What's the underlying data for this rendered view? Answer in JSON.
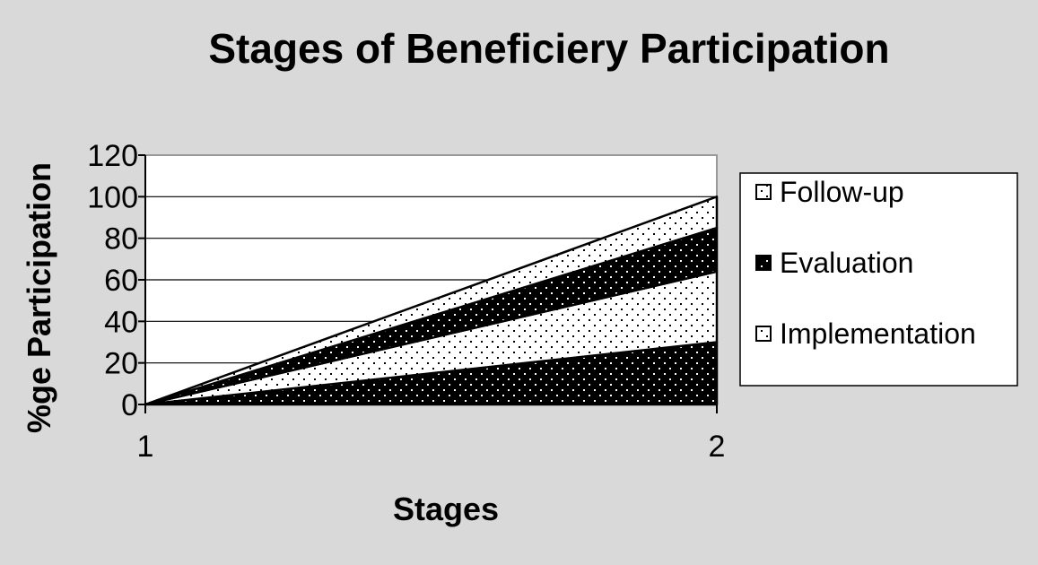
{
  "chart_data": {
    "type": "area",
    "title": "Stages of Beneficiery Participation",
    "xlabel": "Stages",
    "ylabel": "%ge Participation",
    "x": [
      1,
      2
    ],
    "xticks": [
      "1",
      "2"
    ],
    "ylim": [
      0,
      120
    ],
    "yticks": [
      0,
      20,
      40,
      60,
      80,
      100,
      120
    ],
    "stacked": true,
    "grid": true,
    "legend_position": "right",
    "series": [
      {
        "name": "Implementation",
        "values": [
          0,
          30
        ],
        "pattern": "dots-on-black",
        "cumulative_top": [
          0,
          30
        ]
      },
      {
        "name": "Implementation",
        "values": [
          0,
          34
        ],
        "pattern": "dots-on-white",
        "cumulative_top": [
          0,
          64
        ]
      },
      {
        "name": "Evaluation",
        "values": [
          0,
          21
        ],
        "pattern": "dots-on-black",
        "cumulative_top": [
          0,
          85
        ]
      },
      {
        "name": "Follow-up",
        "values": [
          0,
          15
        ],
        "pattern": "dots-on-white",
        "cumulative_top": [
          0,
          100
        ]
      }
    ],
    "legend": [
      {
        "label": "Follow-up",
        "pattern": "dots-on-white"
      },
      {
        "label": "Evaluation",
        "pattern": "dots-on-black"
      },
      {
        "label": "Implementation",
        "pattern": "dots-on-white"
      }
    ],
    "colors": {
      "background": "#d9d9d9",
      "plot": "#ffffff",
      "ink": "#000000",
      "grid": "#000000"
    }
  }
}
